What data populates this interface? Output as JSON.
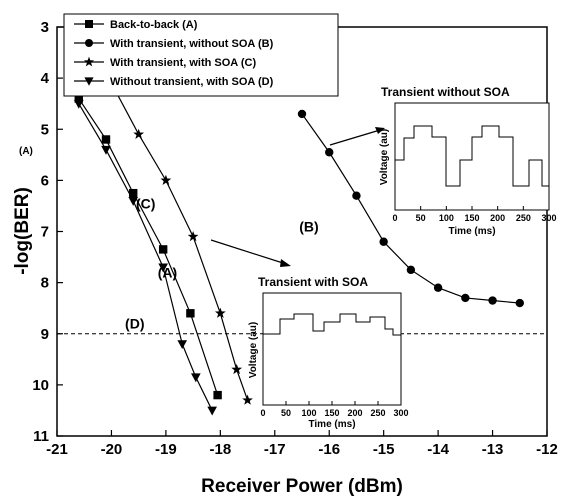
{
  "chart_data": {
    "type": "line",
    "xlabel": "Receiver Power (dBm)",
    "ylabel": "-log(BER)",
    "xlim": [
      -21,
      -12
    ],
    "ylim": [
      3,
      11
    ],
    "y_inverted": true,
    "x_ticks": [
      -21,
      -20,
      -19,
      -18,
      -17,
      -16,
      -15,
      -14,
      -13,
      -12
    ],
    "y_ticks": [
      3,
      4,
      5,
      6,
      7,
      8,
      9,
      10,
      11
    ],
    "grid": false,
    "legend_position": "top-left",
    "threshold_line": {
      "y": 9,
      "style": "dashed"
    },
    "series": [
      {
        "name": "Back-to-back (A)",
        "marker": "square",
        "x": [
          -20.6,
          -20.1,
          -19.6,
          -19.05,
          -18.55,
          -18.05
        ],
        "y": [
          4.4,
          5.2,
          6.25,
          7.35,
          8.6,
          10.2
        ]
      },
      {
        "name": "With transient, without SOA (B)",
        "marker": "circle",
        "x": [
          -16.5,
          -16.0,
          -15.5,
          -15.0,
          -14.5,
          -14.0,
          -13.5,
          -13.0,
          -12.5
        ],
        "y": [
          4.7,
          5.45,
          6.3,
          7.2,
          7.75,
          8.1,
          8.3,
          8.35,
          8.4
        ]
      },
      {
        "name": "With transient, with SOA (C)",
        "marker": "star",
        "x": [
          -19.95,
          -19.5,
          -19.0,
          -18.5,
          -18.0,
          -17.7,
          -17.5
        ],
        "y": [
          4.2,
          5.1,
          6.0,
          7.1,
          8.6,
          9.7,
          10.3
        ]
      },
      {
        "name": "Without transient, with SOA (D)",
        "marker": "triangle-down",
        "x": [
          -20.6,
          -20.1,
          -19.6,
          -19.05,
          -18.7,
          -18.45,
          -18.15
        ],
        "y": [
          4.5,
          5.4,
          6.4,
          7.7,
          9.2,
          9.85,
          10.5
        ]
      }
    ],
    "annotations": [
      {
        "text": "(A)",
        "x": -19.15,
        "y": 7.9
      },
      {
        "text": "(B)",
        "x": -16.55,
        "y": 7.0
      },
      {
        "text": "(C)",
        "x": -19.55,
        "y": 6.55
      },
      {
        "text": "(D)",
        "x": -19.75,
        "y": 8.9
      }
    ],
    "side_note": "(A)",
    "insets": [
      {
        "title": "Transient without SOA",
        "xlabel": "Time (ms)",
        "ylabel": "Voltage (au)",
        "x_ticks": [
          0,
          50,
          100,
          150,
          200,
          250,
          300
        ],
        "xlim": [
          0,
          300
        ],
        "points_to": "B"
      },
      {
        "title": "Transient with SOA",
        "xlabel": "Time (ms)",
        "ylabel": "Voltage (au)",
        "x_ticks": [
          0,
          50,
          100,
          150,
          200,
          250,
          300
        ],
        "xlim": [
          0,
          300
        ],
        "points_to": "C"
      }
    ]
  },
  "colors": {
    "ink": "#000000",
    "background": "#ffffff"
  }
}
